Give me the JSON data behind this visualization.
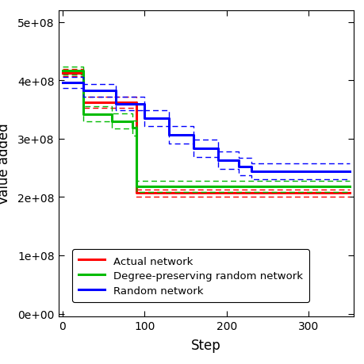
{
  "xlabel": "Step",
  "ylabel": "Value added",
  "xlim": [
    -5,
    355
  ],
  "ylim": [
    -5000000.0,
    520000000.0
  ],
  "yticks": [
    0,
    100000000.0,
    200000000.0,
    300000000.0,
    400000000.0,
    500000000.0
  ],
  "xticks": [
    0,
    100,
    200,
    300
  ],
  "background_color": "#ffffff",
  "red_color": "#ff0000",
  "green_color": "#00bb00",
  "blue_color": "#0000ff",
  "legend_labels": [
    "Actual network",
    "Degree-preserving random network",
    "Random network"
  ],
  "red_x": [
    0,
    25,
    25,
    90,
    90,
    350
  ],
  "red_y": [
    413000000.0,
    413000000.0,
    362000000.0,
    362000000.0,
    207000000.0,
    207000000.0
  ],
  "red_hi": [
    419000000.0,
    419000000.0,
    372000000.0,
    372000000.0,
    213000000.0,
    213000000.0
  ],
  "red_lo": [
    407000000.0,
    407000000.0,
    352000000.0,
    352000000.0,
    201000000.0,
    201000000.0
  ],
  "green_x": [
    0,
    25,
    25,
    60,
    60,
    85,
    85,
    90,
    90,
    350
  ],
  "green_y": [
    416000000.0,
    416000000.0,
    342000000.0,
    342000000.0,
    330000000.0,
    330000000.0,
    318000000.0,
    318000000.0,
    218000000.0,
    218000000.0
  ],
  "green_hi": [
    423000000.0,
    423000000.0,
    355000000.0,
    355000000.0,
    343000000.0,
    343000000.0,
    331000000.0,
    331000000.0,
    228000000.0,
    228000000.0
  ],
  "green_lo": [
    409000000.0,
    409000000.0,
    329000000.0,
    329000000.0,
    317000000.0,
    317000000.0,
    305000000.0,
    305000000.0,
    208000000.0,
    208000000.0
  ],
  "blue_x": [
    0,
    25,
    25,
    65,
    65,
    100,
    100,
    130,
    130,
    160,
    160,
    190,
    190,
    215,
    215,
    230,
    230,
    350
  ],
  "blue_y": [
    396000000.0,
    396000000.0,
    382000000.0,
    382000000.0,
    360000000.0,
    360000000.0,
    335000000.0,
    335000000.0,
    307000000.0,
    307000000.0,
    283000000.0,
    283000000.0,
    263000000.0,
    263000000.0,
    252000000.0,
    252000000.0,
    244000000.0,
    244000000.0
  ],
  "blue_hi": [
    406000000.0,
    406000000.0,
    393000000.0,
    393000000.0,
    372000000.0,
    372000000.0,
    349000000.0,
    349000000.0,
    322000000.0,
    322000000.0,
    298000000.0,
    298000000.0,
    278000000.0,
    278000000.0,
    267000000.0,
    267000000.0,
    258000000.0,
    258000000.0
  ],
  "blue_lo": [
    386000000.0,
    386000000.0,
    371000000.0,
    371000000.0,
    348000000.0,
    348000000.0,
    321000000.0,
    321000000.0,
    292000000.0,
    292000000.0,
    268000000.0,
    268000000.0,
    248000000.0,
    248000000.0,
    237000000.0,
    237000000.0,
    230000000.0,
    230000000.0
  ]
}
